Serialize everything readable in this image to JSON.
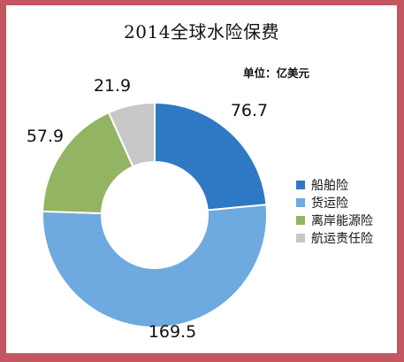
{
  "title": "2014全球水险保费",
  "unit": "单位：亿美元",
  "chart_data": {
    "type": "pie",
    "donut": true,
    "categories": [
      "船舶险",
      "货运险",
      "离岸能源险",
      "航运责任险"
    ],
    "values": [
      76.7,
      169.5,
      57.9,
      21.9
    ],
    "data_labels": [
      "76.7",
      "169.5",
      "57.9",
      "21.9"
    ],
    "colors": [
      "#2f79c4",
      "#6ea9df",
      "#93b462",
      "#c8c8c8"
    ],
    "legend_position": "right"
  }
}
